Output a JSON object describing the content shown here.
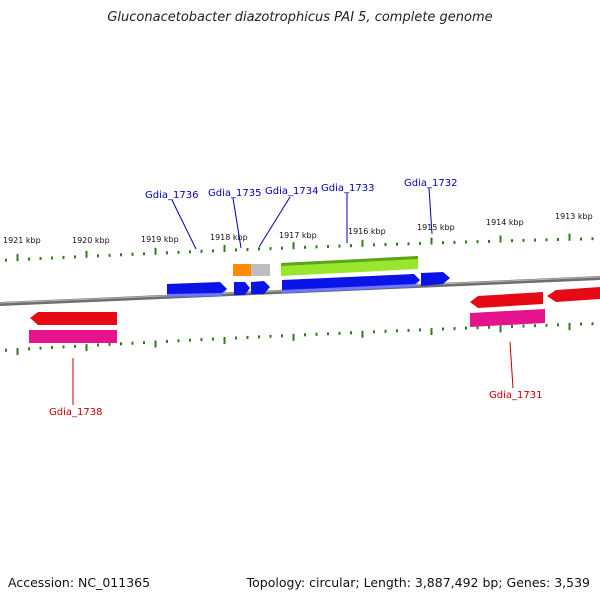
{
  "title": "Gluconacetobacter diazotrophicus PAI 5, complete genome",
  "scale_labels": [
    "1921 kbp",
    "1920 kbp",
    "1919 kbp",
    "1918 kbp",
    "1917 kbp",
    "1916 kbp",
    "1915 kbp",
    "1914 kbp",
    "1913 kbp"
  ],
  "gene_labels_top": [
    "Gdia_1736",
    "Gdia_1735",
    "Gdia_1734",
    "Gdia_1733",
    "Gdia_1732"
  ],
  "gene_labels_bottom": [
    "Gdia_1738",
    "Gdia_1731"
  ],
  "footer": {
    "accession": "Accession: NC_011365",
    "topology": "Topology: circular; Length: 3,887,492 bp; Genes: 3,539"
  },
  "colors": {
    "backbone": "#7a7a7a",
    "tick": "#2e7d1a",
    "cds_forward": "#0a14e6",
    "rna_forward": "#ff8c00",
    "misc_forward": "#bdbdbd",
    "gene_forward": "#99e62e",
    "cds_reverse": "#e60a14",
    "gene_reverse": "#e6148c",
    "label_forward": "#0000b0",
    "label_reverse": "#c00000"
  }
}
